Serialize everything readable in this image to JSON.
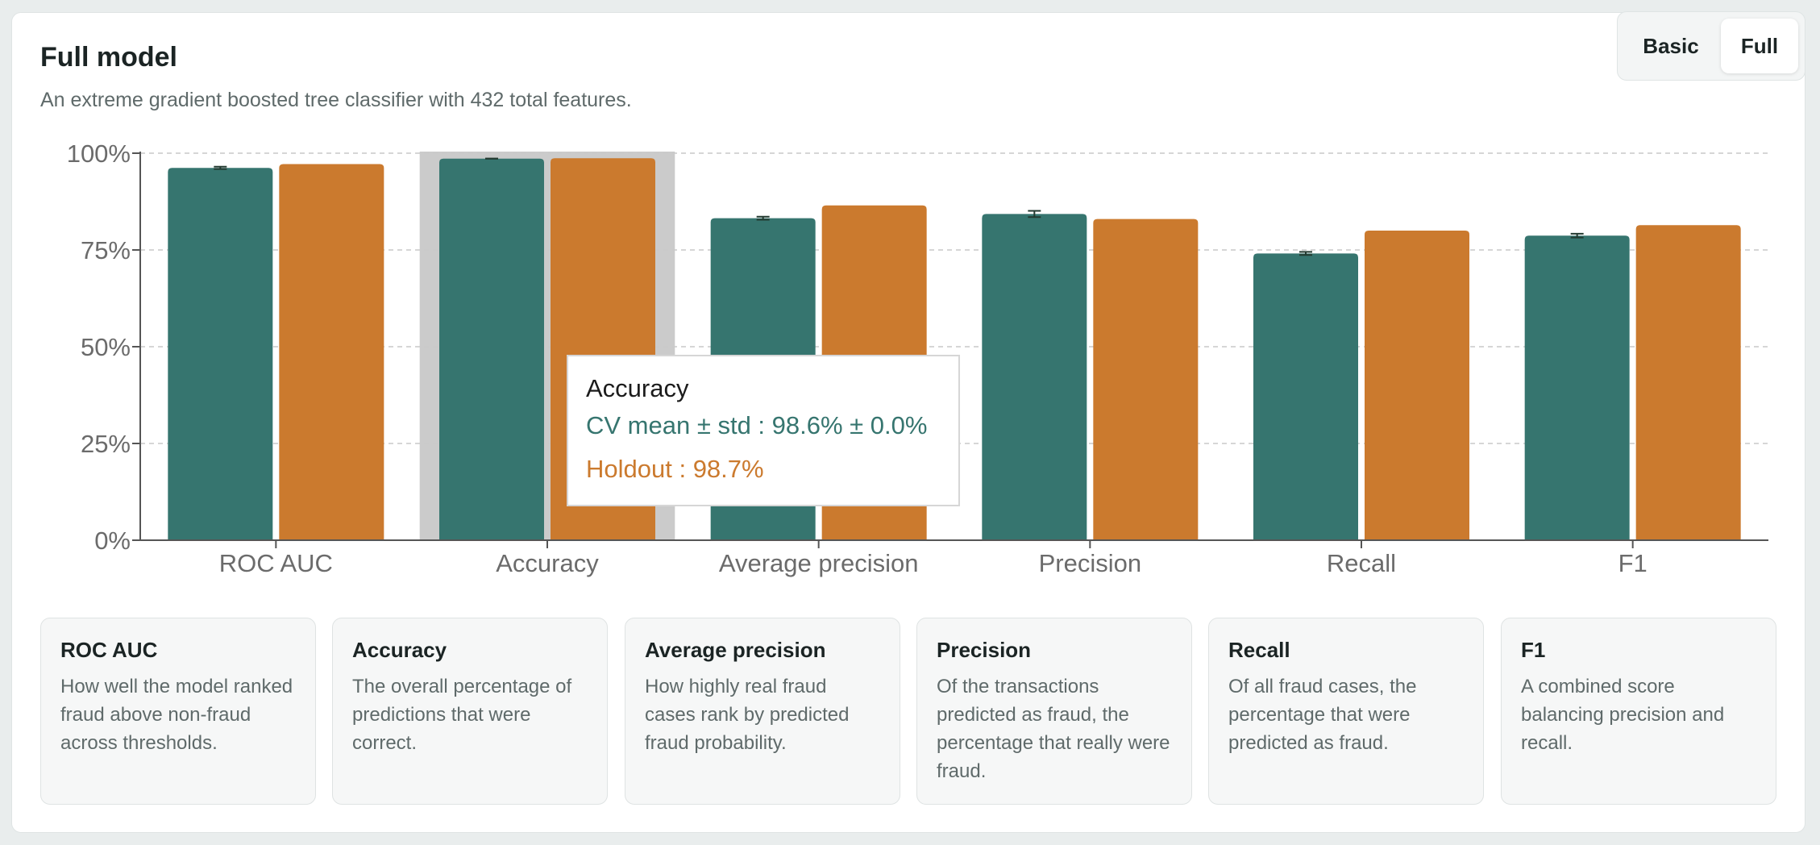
{
  "header": {
    "title": "Full model",
    "subtitle": "An extreme gradient boosted tree classifier with 432 total features."
  },
  "toggle": {
    "options": [
      "Basic",
      "Full"
    ],
    "selected": "Full"
  },
  "colors": {
    "cv": "#36756f",
    "holdout": "#cb7a2e",
    "highlight": "#cbcbcb",
    "grid": "#c9c9c9"
  },
  "chart_data": {
    "type": "bar",
    "categories": [
      "ROC AUC",
      "Accuracy",
      "Average precision",
      "Precision",
      "Recall",
      "F1"
    ],
    "series": [
      {
        "key": "cv",
        "values": [
          96.2,
          98.6,
          83.2,
          84.3,
          74.1,
          78.7
        ],
        "errors": [
          0.3,
          0.0,
          0.4,
          0.8,
          0.4,
          0.5
        ]
      },
      {
        "key": "holdout",
        "values": [
          97.2,
          98.7,
          86.5,
          83.0,
          80.0,
          81.4
        ]
      }
    ],
    "yticks": [
      "0%",
      "25%",
      "50%",
      "75%",
      "100%"
    ],
    "ylim": [
      0,
      100
    ],
    "grid": true,
    "highlighted_category": "Accuracy"
  },
  "tooltip": {
    "title": "Accuracy",
    "cv_text": "CV mean ± std : 98.6% ± 0.0%",
    "holdout_text": "Holdout : 98.7%"
  },
  "descriptions": [
    {
      "title": "ROC AUC",
      "text": "How well the model ranked fraud above non-fraud across thresholds."
    },
    {
      "title": "Accuracy",
      "text": "The overall percentage of predictions that were correct."
    },
    {
      "title": "Average precision",
      "text": "How highly real fraud cases rank by predicted fraud probability."
    },
    {
      "title": "Precision",
      "text": "Of the transactions predicted as fraud, the percentage that really were fraud."
    },
    {
      "title": "Recall",
      "text": "Of all fraud cases, the percentage that were predicted as fraud."
    },
    {
      "title": "F1",
      "text": "A combined score balancing precision and recall."
    }
  ]
}
